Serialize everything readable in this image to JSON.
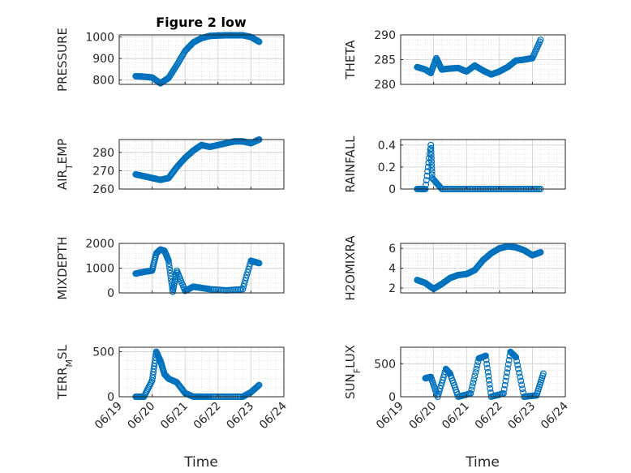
{
  "figure_title": "Figure 2 low",
  "x_label": "Time",
  "colors": {
    "marker": "#0072BD",
    "axis": "#262626",
    "grid": "#d9d9d9"
  },
  "chart_data": [
    {
      "type": "scatter",
      "ylabel": "PRESSURE",
      "ylim": [
        780,
        1010
      ],
      "yticks": [
        800,
        900,
        1000
      ],
      "xlim": [
        "06/19",
        "06/24"
      ],
      "xticks": [
        "06/19",
        "06/20",
        "06/21",
        "06/22",
        "06/23",
        "06/24"
      ],
      "minor_grid": true,
      "series": [
        {
          "x": [
            "06/19 12:00",
            "06/19 18:00",
            "06/20 00:00",
            "06/20 06:00",
            "06/20 12:00",
            "06/20 18:00",
            "06/21 00:00",
            "06/21 06:00",
            "06/21 12:00",
            "06/21 18:00",
            "06/22 00:00",
            "06/22 06:00",
            "06/22 12:00",
            "06/22 18:00",
            "06/23 00:00",
            "06/23 06:00"
          ],
          "y": [
            818,
            816,
            812,
            785,
            810,
            870,
            935,
            975,
            995,
            1005,
            1007,
            1008,
            1008,
            1008,
            1000,
            978
          ]
        }
      ]
    },
    {
      "type": "scatter",
      "ylabel": "THETA",
      "ylim": [
        280,
        290
      ],
      "yticks": [
        280,
        285,
        290
      ],
      "xlim": [
        "06/19",
        "06/24"
      ],
      "xticks": [
        "06/19",
        "06/20",
        "06/21",
        "06/22",
        "06/23",
        "06/24"
      ],
      "minor_grid": true,
      "series": [
        {
          "x": [
            "06/19 12:00",
            "06/19 18:00",
            "06/19 22:00",
            "06/20 02:00",
            "06/20 06:00",
            "06/20 12:00",
            "06/20 18:00",
            "06/21 00:00",
            "06/21 06:00",
            "06/21 12:00",
            "06/21 18:00",
            "06/22 00:00",
            "06/22 06:00",
            "06/22 12:00",
            "06/22 18:00",
            "06/23 00:00",
            "06/23 06:00"
          ],
          "y": [
            283.5,
            283,
            282.3,
            285.3,
            283,
            283.2,
            283.3,
            282.6,
            283.8,
            282.8,
            282.0,
            282.6,
            283.5,
            284.8,
            285.0,
            285.3,
            289
          ]
        }
      ]
    },
    {
      "type": "scatter",
      "ylabel": "AIR_TEMP",
      "ylim": [
        260,
        287
      ],
      "yticks": [
        260,
        270,
        280
      ],
      "xlim": [
        "06/19",
        "06/24"
      ],
      "xticks": [
        "06/19",
        "06/20",
        "06/21",
        "06/22",
        "06/23",
        "06/24"
      ],
      "minor_grid": true,
      "series": [
        {
          "x": [
            "06/19 12:00",
            "06/19 18:00",
            "06/20 00:00",
            "06/20 06:00",
            "06/20 12:00",
            "06/20 18:00",
            "06/21 00:00",
            "06/21 06:00",
            "06/21 12:00",
            "06/21 18:00",
            "06/22 00:00",
            "06/22 06:00",
            "06/22 12:00",
            "06/22 18:00",
            "06/23 00:00",
            "06/23 06:00"
          ],
          "y": [
            268,
            267,
            266,
            265,
            266,
            272,
            277,
            281,
            284,
            283,
            284,
            285,
            286,
            286,
            285,
            287
          ]
        }
      ]
    },
    {
      "type": "scatter",
      "ylabel": "RAINFALL",
      "ylim": [
        0,
        0.45
      ],
      "yticks": [
        0,
        0.2,
        0.4
      ],
      "xlim": [
        "06/19",
        "06/24"
      ],
      "xticks": [
        "06/19",
        "06/20",
        "06/21",
        "06/22",
        "06/23",
        "06/24"
      ],
      "minor_grid": true,
      "series": [
        {
          "x": [
            "06/19 12:00",
            "06/19 18:00",
            "06/19 22:00",
            "06/19 23:00",
            "06/20 06:00",
            "06/20 18:00",
            "06/21 06:00",
            "06/21 18:00",
            "06/22 06:00",
            "06/22 18:00",
            "06/23 06:00"
          ],
          "y": [
            0,
            0,
            0.4,
            0.1,
            0,
            0,
            0,
            0,
            0,
            0,
            0
          ]
        }
      ]
    },
    {
      "type": "scatter",
      "ylabel": "MIXDEPTH",
      "ylim": [
        0,
        2000
      ],
      "yticks": [
        0,
        1000,
        2000
      ],
      "xlim": [
        "06/19",
        "06/24"
      ],
      "xticks": [
        "06/19",
        "06/20",
        "06/21",
        "06/22",
        "06/23",
        "06/24"
      ],
      "minor_grid": true,
      "series": [
        {
          "x": [
            "06/19 12:00",
            "06/19 18:00",
            "06/20 00:00",
            "06/20 03:00",
            "06/20 06:00",
            "06/20 09:00",
            "06/20 12:00",
            "06/20 15:00",
            "06/20 18:00",
            "06/21 00:00",
            "06/21 06:00",
            "06/21 12:00",
            "06/21 18:00",
            "06/22 06:00",
            "06/22 18:00",
            "06/23 00:00",
            "06/23 06:00"
          ],
          "y": [
            780,
            850,
            900,
            1600,
            1750,
            1700,
            1300,
            50,
            900,
            80,
            250,
            200,
            150,
            100,
            150,
            1300,
            1200
          ]
        }
      ]
    },
    {
      "type": "scatter",
      "ylabel": "H2OMIXRA",
      "ylim": [
        1.5,
        6.5
      ],
      "yticks": [
        2,
        4,
        6
      ],
      "xlim": [
        "06/19",
        "06/24"
      ],
      "xticks": [
        "06/19",
        "06/20",
        "06/21",
        "06/22",
        "06/23",
        "06/24"
      ],
      "minor_grid": true,
      "series": [
        {
          "x": [
            "06/19 12:00",
            "06/19 18:00",
            "06/20 00:00",
            "06/20 06:00",
            "06/20 12:00",
            "06/20 18:00",
            "06/21 00:00",
            "06/21 06:00",
            "06/21 12:00",
            "06/21 18:00",
            "06/22 00:00",
            "06/22 06:00",
            "06/22 12:00",
            "06/22 18:00",
            "06/23 00:00",
            "06/23 06:00"
          ],
          "y": [
            2.8,
            2.5,
            1.9,
            2.4,
            3.0,
            3.3,
            3.4,
            3.8,
            4.8,
            5.5,
            6.0,
            6.2,
            6.1,
            5.8,
            5.3,
            5.6
          ]
        }
      ]
    },
    {
      "type": "scatter",
      "ylabel": "TERR_MSL",
      "ylim": [
        0,
        550
      ],
      "yticks": [
        0,
        500
      ],
      "xlim": [
        "06/19",
        "06/24"
      ],
      "xticks": [
        "06/19",
        "06/20",
        "06/21",
        "06/22",
        "06/23",
        "06/24"
      ],
      "minor_grid": true,
      "series": [
        {
          "x": [
            "06/19 12:00",
            "06/19 18:00",
            "06/20 00:00",
            "06/20 03:00",
            "06/20 06:00",
            "06/20 09:00",
            "06/20 12:00",
            "06/20 18:00",
            "06/21 00:00",
            "06/21 06:00",
            "06/21 12:00",
            "06/21 18:00",
            "06/22 06:00",
            "06/22 18:00",
            "06/23 00:00",
            "06/23 06:00"
          ],
          "y": [
            0,
            0,
            180,
            500,
            400,
            250,
            200,
            160,
            40,
            0,
            0,
            0,
            0,
            0,
            50,
            130
          ]
        }
      ]
    },
    {
      "type": "scatter",
      "ylabel": "SUN_FLUX",
      "ylim": [
        0,
        750
      ],
      "yticks": [
        0,
        500
      ],
      "xlim": [
        "06/19",
        "06/24"
      ],
      "xticks": [
        "06/19",
        "06/20",
        "06/21",
        "06/22",
        "06/23",
        "06/24"
      ],
      "minor_grid": true,
      "series": [
        {
          "x": [
            "06/19 18:00",
            "06/19 22:00",
            "06/20 03:00",
            "06/20 09:00",
            "06/20 12:00",
            "06/20 18:00",
            "06/21 03:00",
            "06/21 09:00",
            "06/21 14:00",
            "06/21 18:00",
            "06/22 03:00",
            "06/22 08:00",
            "06/22 12:00",
            "06/22 18:00",
            "06/23 03:00",
            "06/23 08:00"
          ],
          "y": [
            280,
            300,
            0,
            420,
            350,
            0,
            50,
            580,
            620,
            0,
            50,
            680,
            600,
            0,
            20,
            350
          ]
        }
      ]
    }
  ]
}
